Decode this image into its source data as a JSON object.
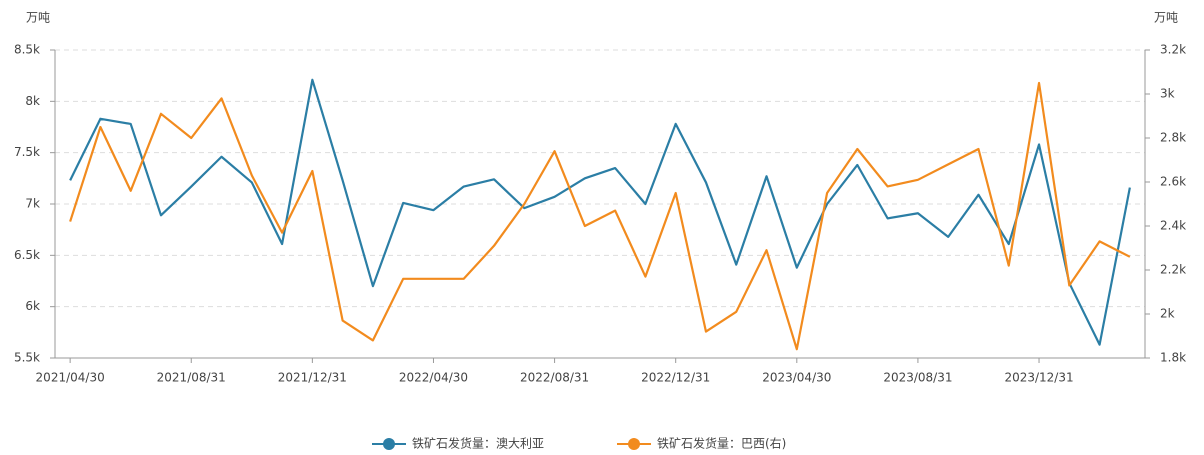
{
  "chart_data": {
    "type": "line",
    "y_unit": "万吨",
    "y2_unit": "万吨",
    "categories": [
      "2021/04/30",
      null,
      null,
      null,
      "2021/08/31",
      null,
      null,
      null,
      "2021/12/31",
      null,
      null,
      null,
      "2022/04/30",
      null,
      null,
      null,
      "2022/08/31",
      null,
      null,
      null,
      "2022/12/31",
      null,
      null,
      null,
      "2023/04/30",
      null,
      null,
      null,
      "2023/08/31",
      null,
      null,
      null,
      "2023/12/31",
      null,
      null,
      null
    ],
    "series": [
      {
        "name": "铁矿石发货量：澳大利亚",
        "color": "#2b7ea5",
        "values": [
          7230,
          7830,
          7780,
          6890,
          7170,
          7460,
          7210,
          6610,
          8210,
          7230,
          6200,
          7010,
          6940,
          7170,
          7240,
          6960,
          7070,
          7250,
          7350,
          7000,
          7780,
          7210,
          6410,
          7270,
          6380,
          7000,
          7380,
          6860,
          6910,
          6680,
          7090,
          6610,
          7580,
          6230,
          5630,
          7160
        ]
      },
      {
        "name": "铁矿石发货量：巴西(右)",
        "color": "#f28b1e",
        "axis": "y2",
        "values": [
          2420,
          2850,
          2560,
          2910,
          2800,
          2980,
          2630,
          2370,
          2650,
          1970,
          1880,
          2160,
          2160,
          2160,
          2310,
          2500,
          2740,
          2400,
          2470,
          2170,
          2550,
          1920,
          2010,
          2290,
          1840,
          2550,
          2750,
          2580,
          2610,
          2680,
          2750,
          2220,
          3050,
          2130,
          2330,
          2260
        ]
      }
    ],
    "ylim": [
      5500,
      8500
    ],
    "yticks": [
      {
        "value": 5500,
        "label": "5.5k"
      },
      {
        "value": 6000,
        "label": "6k"
      },
      {
        "value": 6500,
        "label": "6.5k"
      },
      {
        "value": 7000,
        "label": "7k"
      },
      {
        "value": 7500,
        "label": "7.5k"
      },
      {
        "value": 8000,
        "label": "8k"
      },
      {
        "value": 8500,
        "label": "8.5k"
      }
    ],
    "y2lim": [
      1800,
      3200
    ],
    "y2ticks": [
      {
        "value": 1800,
        "label": "1.8k"
      },
      {
        "value": 2000,
        "label": "2k"
      },
      {
        "value": 2200,
        "label": "2.2k"
      },
      {
        "value": 2400,
        "label": "2.4k"
      },
      {
        "value": 2600,
        "label": "2.6k"
      },
      {
        "value": 2800,
        "label": "2.8k"
      },
      {
        "value": 3000,
        "label": "3k"
      },
      {
        "value": 3200,
        "label": "3.2k"
      }
    ],
    "grid": true,
    "legend": "bottom"
  }
}
